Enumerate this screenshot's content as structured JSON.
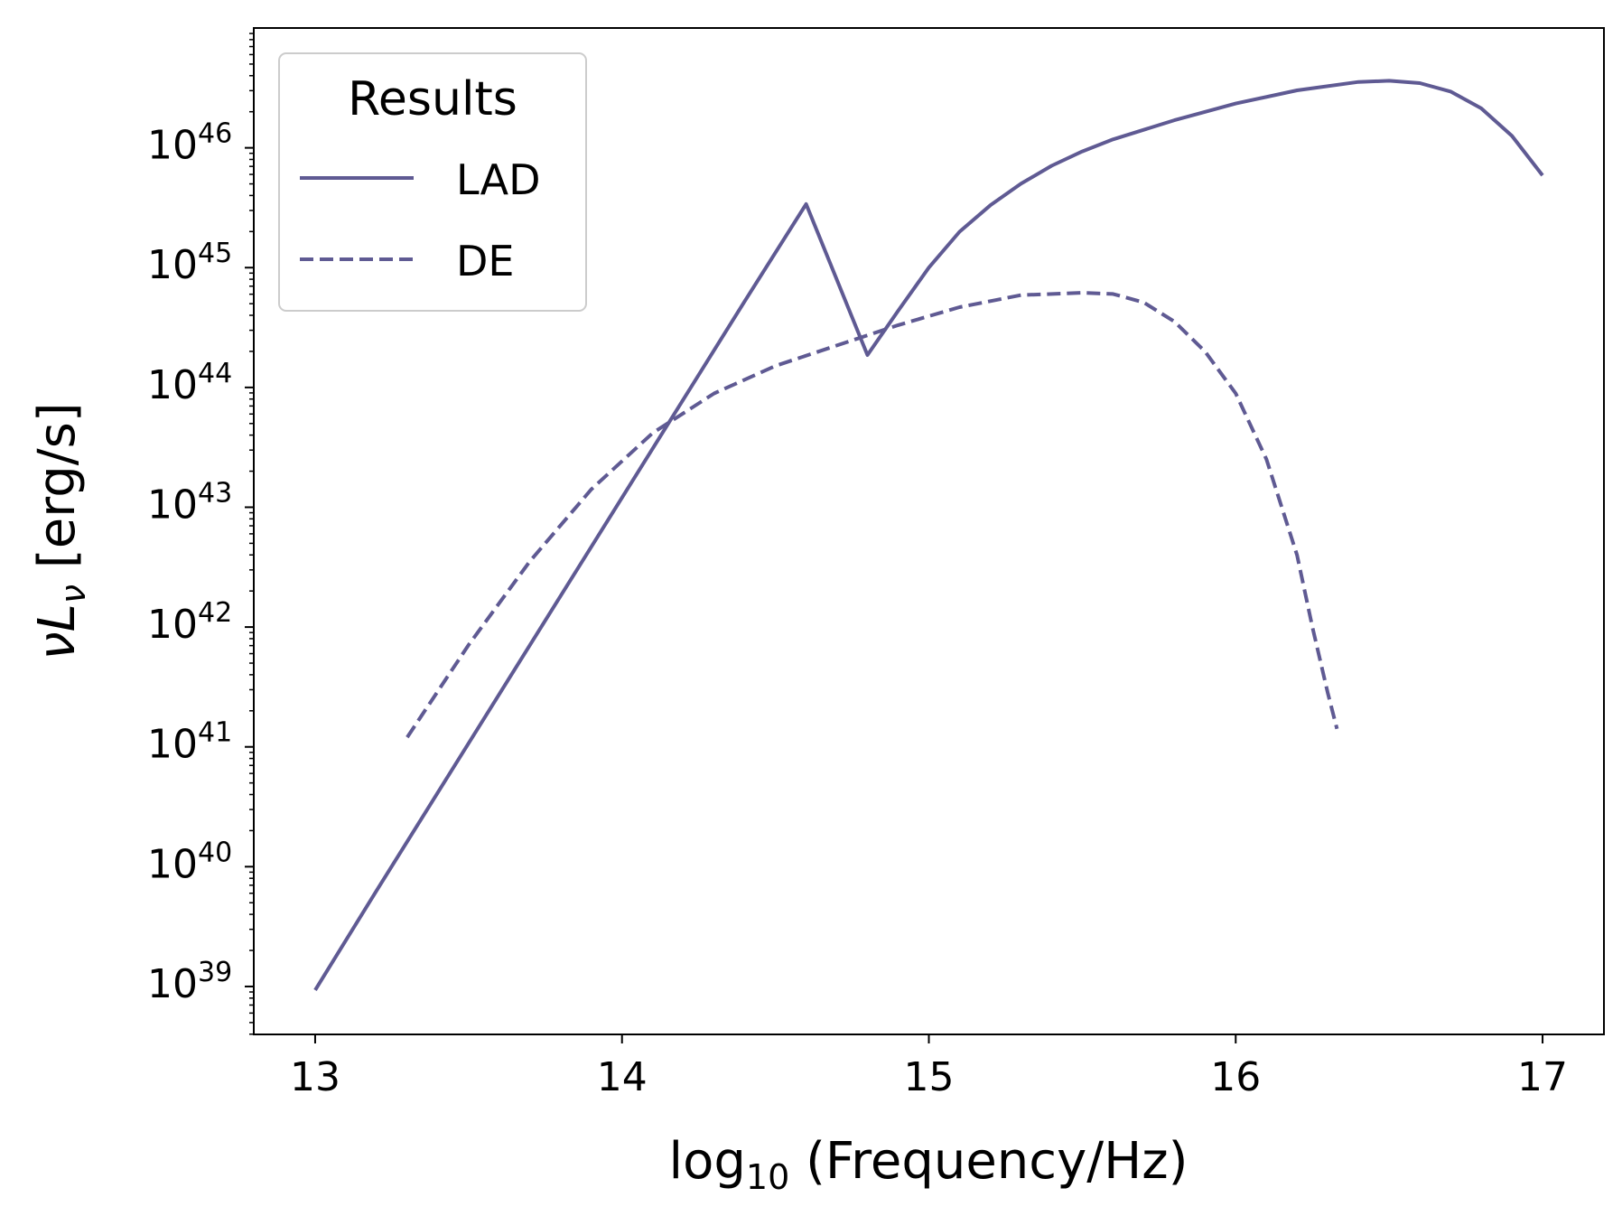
{
  "chart_data": {
    "type": "line",
    "title": "",
    "xlabel": "log10 (Frequency/Hz)",
    "ylabel": "νLν [erg/s]",
    "xlim": [
      12.8,
      17.2
    ],
    "ylim": [
      38.6,
      47.0
    ],
    "yscale": "log",
    "xticks": [
      13,
      14,
      15,
      16,
      17
    ],
    "xtick_labels": [
      "13",
      "14",
      "15",
      "16",
      "17"
    ],
    "yticks": [
      39,
      40,
      41,
      42,
      43,
      44,
      45,
      46
    ],
    "ytick_base": "10",
    "ytick_exponents": [
      "39",
      "40",
      "41",
      "42",
      "43",
      "44",
      "45",
      "46"
    ],
    "grid": false,
    "legend": {
      "title": "Results",
      "placement": "top-left"
    },
    "line_color": "#5f5a93",
    "series": [
      {
        "name": "LAD",
        "style": "solid",
        "x": [
          13.0,
          13.2,
          13.4,
          13.6,
          13.8,
          14.0,
          14.2,
          14.4,
          14.6,
          14.8,
          14.9,
          15.0,
          15.1,
          15.2,
          15.3,
          15.4,
          15.5,
          15.6,
          15.8,
          16.0,
          16.2,
          16.4,
          16.5,
          16.6,
          16.7,
          16.8,
          16.9,
          17.0
        ],
        "log_y": [
          38.97,
          39.8,
          40.62,
          41.44,
          42.26,
          43.08,
          43.9,
          44.72,
          45.53,
          44.27,
          44.64,
          45.0,
          45.3,
          45.52,
          45.7,
          45.85,
          45.97,
          46.07,
          46.23,
          46.37,
          46.48,
          46.55,
          46.56,
          46.54,
          46.47,
          46.33,
          46.1,
          45.77
        ]
      },
      {
        "name": "DE",
        "style": "dashed",
        "x": [
          13.3,
          13.5,
          13.7,
          13.9,
          14.1,
          14.3,
          14.5,
          14.7,
          14.9,
          15.1,
          15.3,
          15.5,
          15.6,
          15.7,
          15.8,
          15.9,
          16.0,
          16.1,
          16.2,
          16.25,
          16.3,
          16.33
        ],
        "log_y": [
          41.08,
          41.85,
          42.55,
          43.15,
          43.62,
          43.95,
          44.18,
          44.35,
          44.52,
          44.67,
          44.77,
          44.79,
          44.78,
          44.71,
          44.55,
          44.3,
          43.95,
          43.4,
          42.6,
          42.0,
          41.45,
          41.15
        ]
      }
    ]
  }
}
